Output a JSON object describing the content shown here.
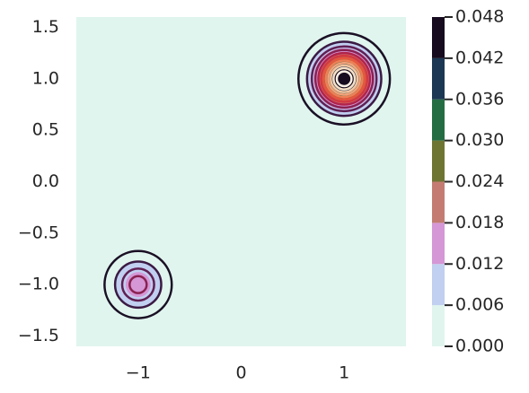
{
  "chart_data": {
    "type": "contour",
    "xlim": [
      -1.6,
      1.6
    ],
    "ylim": [
      -1.6,
      1.6
    ],
    "xticks": [
      {
        "value": -1,
        "label": "−1"
      },
      0,
      1
    ],
    "yticks": [
      1.5,
      {
        "value": 1.0,
        "label": "1.0"
      },
      0.5,
      {
        "value": 0.0,
        "label": "0.0"
      },
      {
        "value": -0.5,
        "label": "−0.5"
      },
      {
        "value": -1.0,
        "label": "−1.0"
      },
      {
        "value": -1.5,
        "label": "−1.5"
      }
    ],
    "levels": [
      {
        "value": 0,
        "label": "0.000"
      },
      {
        "value": 0.006,
        "label": "0.006"
      },
      {
        "value": 0.012,
        "label": "0.012"
      },
      {
        "value": 0.018,
        "label": "0.018"
      },
      {
        "value": 0.024,
        "label": "0.024"
      },
      {
        "value": 0.03,
        "label": "0.030"
      },
      {
        "value": 0.036,
        "label": "0.036"
      },
      {
        "value": 0.042,
        "label": "0.042"
      },
      {
        "value": 0.048,
        "label": "0.048"
      }
    ],
    "colors": [
      "#e0f5ee",
      "#c1cff0",
      "#d597d6",
      "#c47c72",
      "#6e7533",
      "#246d43",
      "#1b3753",
      "#160b1f"
    ],
    "peaks": [
      {
        "x": 1,
        "y": 1,
        "amplitude": 0.05,
        "sigma": 0.175
      },
      {
        "x": -1,
        "y": -1,
        "amplitude": 0.016,
        "sigma": 0.16
      }
    ],
    "line_levels": [
      0.002,
      0.006,
      0.01,
      0.014,
      0.018,
      0.022,
      0.026,
      0.03,
      0.034,
      0.038,
      0.042,
      0.046
    ],
    "line_colors": [
      "#1a1025",
      "#3b1a44",
      "#611f53",
      "#8a2252",
      "#b2234a",
      "#d53741",
      "#e8553f",
      "#f07f57",
      "#f3a27a",
      "#f5c49f",
      "#f7e0c6",
      "#faf0e4"
    ]
  }
}
